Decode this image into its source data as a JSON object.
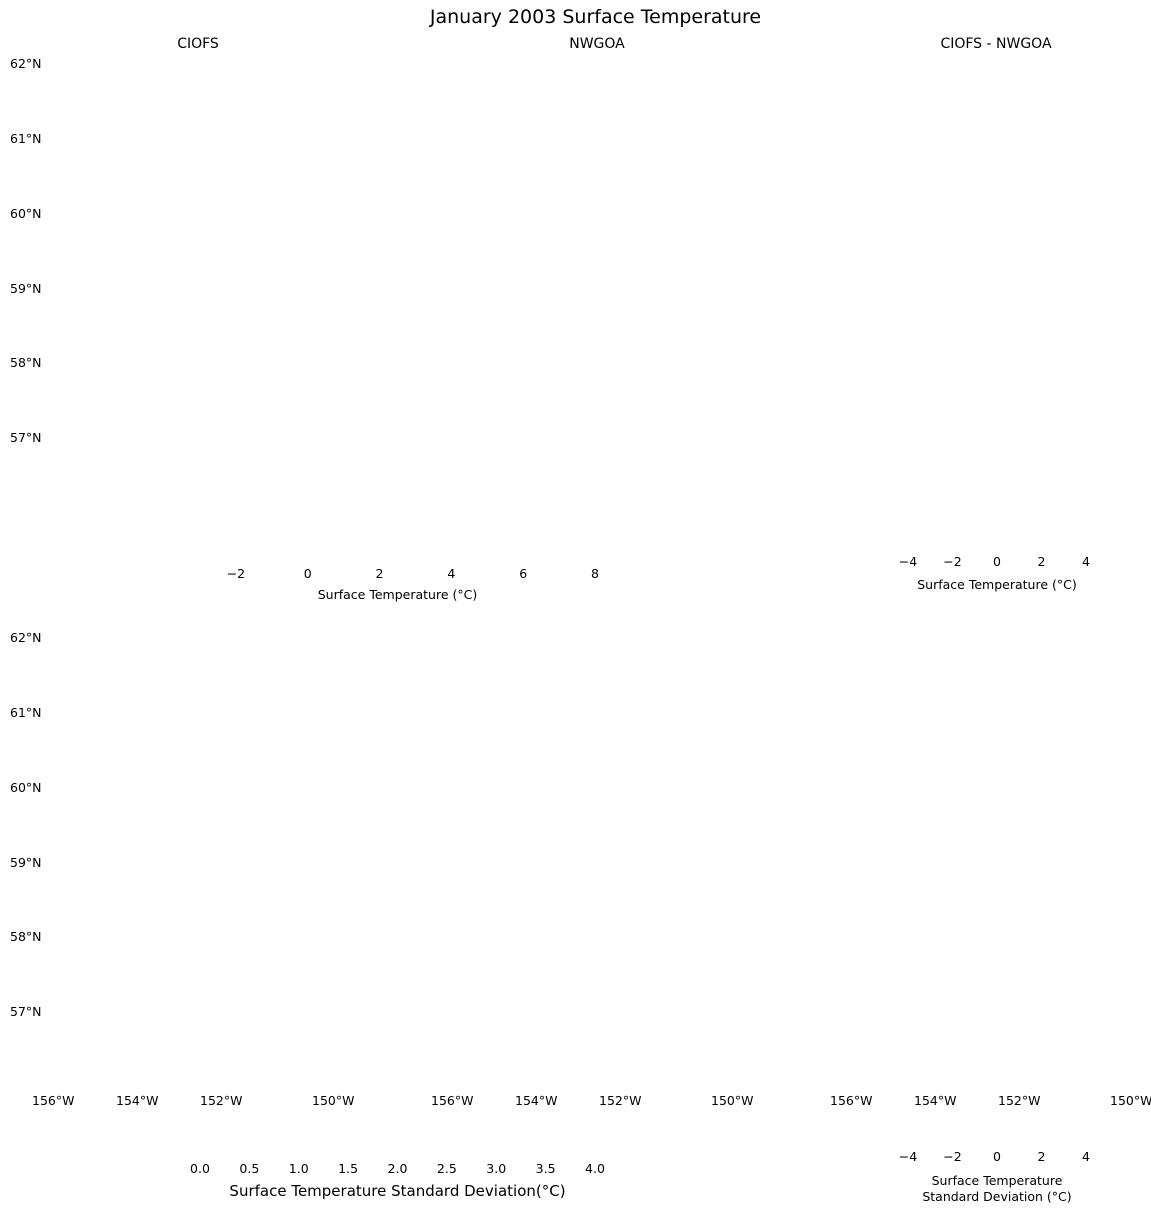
{
  "figure_title": "January 2003 Surface Temperature",
  "panels": [
    {
      "title": "CIOFS",
      "row": 0,
      "col": 0,
      "domain": "ciofs",
      "cmap": "thermal",
      "show_lat": true,
      "show_lon": false
    },
    {
      "title": "NWGOA",
      "row": 0,
      "col": 1,
      "domain": "nwgoa",
      "cmap": "thermal",
      "show_lat": false,
      "show_lon": false
    },
    {
      "title": "CIOFS - NWGOA",
      "row": 0,
      "col": 2,
      "domain": "diff",
      "cmap": "balance",
      "show_lat": false,
      "show_lon": false
    },
    {
      "title": "",
      "row": 1,
      "col": 0,
      "domain": "ciofs",
      "cmap": "thermal_std",
      "show_lat": true,
      "show_lon": true
    },
    {
      "title": "",
      "row": 1,
      "col": 1,
      "domain": "nwgoa",
      "cmap": "thermal_std",
      "show_lat": false,
      "show_lon": true
    },
    {
      "title": "",
      "row": 1,
      "col": 2,
      "domain": "diff",
      "cmap": "balance_std",
      "show_lat": false,
      "show_lon": true
    }
  ],
  "lat_ticks": [
    "62°N",
    "61°N",
    "60°N",
    "59°N",
    "58°N",
    "57°N"
  ],
  "lon_ticks": [
    "156°W",
    "154°W",
    "152°W",
    "150°W"
  ],
  "colorbars": [
    {
      "label": "Surface Temperature (°C)",
      "ticks": [
        "−2",
        "0",
        "2",
        "4",
        "6",
        "8"
      ],
      "range": [
        -3,
        8
      ],
      "cmap": "thermal",
      "extend": "neither"
    },
    {
      "label": "Surface Temperature (°C)",
      "ticks": [
        "−4",
        "−2",
        "0",
        "2",
        "4"
      ],
      "range": [
        -4,
        4
      ],
      "cmap": "balance",
      "extend": "both"
    },
    {
      "label": "Surface Temperature Standard Deviation(°C)",
      "ticks": [
        "0.0",
        "0.5",
        "1.0",
        "1.5",
        "2.0",
        "2.5",
        "3.0",
        "3.5",
        "4.0"
      ],
      "range": [
        0,
        4
      ],
      "cmap": "thermal",
      "extend": "neither"
    },
    {
      "label_line1": "Surface Temperature",
      "label_line2": "Standard Deviation (°C)",
      "ticks": [
        "−4",
        "−2",
        "0",
        "2",
        "4"
      ],
      "range": [
        -4,
        4
      ],
      "cmap": "balance",
      "extend": "both"
    }
  ],
  "colors": {
    "land": "#cccccc",
    "thermal": [
      "#04202d",
      "#2d2f8a",
      "#5a3a9a",
      "#9a5a8a",
      "#d0686a",
      "#f0854a",
      "#fba838",
      "#e8f25a"
    ],
    "balance": [
      "#181c43",
      "#1055c0",
      "#6aa0c0",
      "#f1ecec",
      "#d08a70",
      "#b8302a",
      "#3c0912"
    ]
  }
}
